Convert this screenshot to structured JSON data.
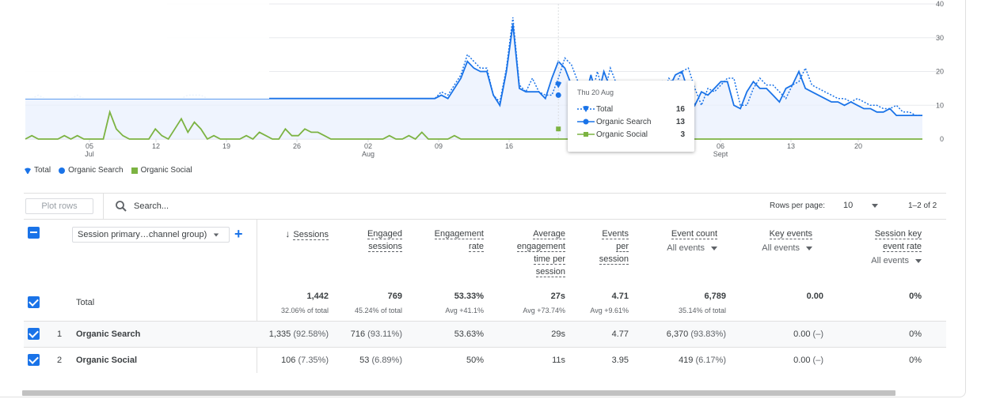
{
  "chart_data": {
    "type": "line",
    "x_tick_labels": [
      {
        "day": "05",
        "month": "Jul"
      },
      {
        "day": "12",
        "month": ""
      },
      {
        "day": "19",
        "month": ""
      },
      {
        "day": "26",
        "month": ""
      },
      {
        "day": "02",
        "month": "Aug"
      },
      {
        "day": "09",
        "month": ""
      },
      {
        "day": "16",
        "month": ""
      },
      {
        "day": "23",
        "month": ""
      },
      {
        "day": "30",
        "month": ""
      },
      {
        "day": "06",
        "month": "Sept"
      },
      {
        "day": "13",
        "month": ""
      },
      {
        "day": "20",
        "month": ""
      }
    ],
    "y_ticks": [
      "0",
      "10",
      "20",
      "30",
      "40"
    ],
    "ylim": [
      0,
      40
    ],
    "grid": true,
    "series": [
      {
        "name": "Total",
        "color": "#1a73e8",
        "style": "dotted",
        "values": [
          12,
          12,
          13,
          12,
          12,
          12,
          12,
          12,
          13,
          12,
          12,
          12,
          12,
          12,
          12,
          12,
          12,
          12,
          12,
          12,
          12,
          12,
          12,
          12,
          12,
          13,
          13,
          13,
          12,
          12,
          12,
          12,
          12,
          12,
          12,
          12,
          12,
          12,
          12,
          12,
          12,
          12,
          12,
          12,
          12,
          12,
          12,
          12,
          12,
          12,
          12,
          12,
          12,
          12,
          12,
          12,
          12,
          12,
          12,
          12,
          12,
          12,
          12,
          12,
          14,
          13,
          16,
          19,
          25,
          23,
          21,
          21,
          13,
          11,
          21,
          36,
          16,
          14,
          18,
          14,
          13,
          13,
          18,
          24,
          22,
          17,
          11,
          12,
          20,
          13,
          21,
          16,
          16,
          13,
          15,
          16,
          17,
          12,
          13,
          18,
          16,
          20,
          21,
          15,
          10,
          15,
          14,
          16,
          18,
          18,
          10,
          10,
          15,
          18,
          16,
          16,
          14,
          12,
          16,
          17,
          21,
          16,
          15,
          14,
          13,
          12,
          12,
          11,
          12,
          11,
          10,
          10,
          9,
          9,
          10,
          8,
          8,
          7,
          7
        ]
      },
      {
        "name": "Organic Search",
        "color": "#1a73e8",
        "style": "solid",
        "values": [
          12,
          12,
          12,
          12,
          12,
          12,
          12,
          12,
          12,
          12,
          12,
          12,
          12,
          12,
          12,
          12,
          12,
          12,
          12,
          12,
          12,
          12,
          12,
          12,
          12,
          12,
          12,
          12,
          12,
          12,
          12,
          12,
          12,
          12,
          12,
          12,
          12,
          12,
          12,
          12,
          12,
          12,
          12,
          12,
          12,
          12,
          12,
          12,
          12,
          12,
          12,
          12,
          12,
          12,
          12,
          12,
          12,
          12,
          12,
          12,
          12,
          12,
          12,
          12,
          13,
          12,
          15,
          18,
          23,
          21,
          20,
          20,
          13,
          10,
          20,
          34,
          15,
          14,
          14,
          14,
          12,
          18,
          23,
          21,
          16,
          10,
          11,
          19,
          12,
          20,
          15,
          15,
          12,
          14,
          15,
          16,
          11,
          12,
          17,
          15,
          19,
          20,
          14,
          10,
          14,
          13,
          15,
          17,
          17,
          10,
          9,
          14,
          17,
          15,
          15,
          13,
          11,
          15,
          16,
          20,
          15,
          14,
          13,
          12,
          11,
          11,
          10,
          11,
          10,
          9,
          9,
          8,
          8,
          9,
          7,
          7,
          7,
          7,
          7
        ]
      },
      {
        "name": "Organic Social",
        "color": "#7cb342",
        "style": "solid",
        "values": [
          0,
          1,
          0,
          0,
          0,
          0,
          1,
          0,
          1,
          0,
          0,
          0,
          0,
          8,
          3,
          1,
          0,
          0,
          0,
          0,
          3,
          1,
          0,
          3,
          6,
          2,
          5,
          3,
          0,
          1,
          0,
          0,
          0,
          0,
          1,
          0,
          2,
          1,
          0,
          0,
          3,
          1,
          1,
          3,
          2,
          2,
          1,
          0,
          0,
          0,
          0,
          0,
          0,
          0,
          0,
          0,
          1,
          0,
          0,
          1,
          0,
          2,
          0,
          0,
          0,
          0,
          1,
          0,
          0,
          0,
          0,
          0,
          0,
          0,
          0,
          0,
          0,
          0,
          0,
          0,
          0,
          0,
          0,
          0,
          0,
          0,
          0,
          0,
          0,
          0,
          0,
          0,
          0,
          0,
          0,
          0,
          0,
          0,
          0,
          0,
          0,
          0,
          0,
          0,
          0,
          0,
          0,
          0,
          0,
          0,
          0,
          0,
          0,
          0,
          0,
          0,
          0,
          0,
          0,
          0,
          0,
          0,
          0,
          0,
          0,
          0,
          0,
          0,
          0,
          0,
          0,
          0,
          0,
          0,
          0,
          0,
          0,
          0,
          0
        ]
      }
    ],
    "tooltip": {
      "date": "Thu 20 Aug",
      "rows": [
        {
          "label": "Total",
          "value": "16"
        },
        {
          "label": "Organic Search",
          "value": "13"
        },
        {
          "label": "Organic Social",
          "value": "3"
        }
      ]
    },
    "legend": [
      {
        "label": "Total",
        "marker": "droplet-icon",
        "color": "#1a73e8"
      },
      {
        "label": "Organic Search",
        "marker": "dot",
        "color": "#1a73e8"
      },
      {
        "label": "Organic Social",
        "marker": "square",
        "color": "#7cb342"
      }
    ]
  },
  "toolbar": {
    "plot_rows": "Plot rows",
    "search_placeholder": "Search...",
    "rows_per_page_label": "Rows per page:",
    "rows_per_page_value": "10",
    "page_info": "1–2 of 2"
  },
  "table": {
    "dimension_select": "Session primary…channel group)",
    "columns": [
      {
        "lines": [
          "Sessions"
        ],
        "sorted": true
      },
      {
        "lines": [
          "Engaged",
          "sessions"
        ]
      },
      {
        "lines": [
          "Engagement",
          "rate"
        ]
      },
      {
        "lines": [
          "Average",
          "engagement",
          "time per",
          "session"
        ]
      },
      {
        "lines": [
          "Events",
          "per",
          "session"
        ]
      },
      {
        "lines": [
          "Event count"
        ],
        "sub": "All events"
      },
      {
        "lines": [
          "Key events"
        ],
        "sub": "All events"
      },
      {
        "lines": [
          "Session key",
          "event rate"
        ],
        "sub": "All events"
      }
    ],
    "total": {
      "label": "Total",
      "values": [
        "1,442",
        "769",
        "53.33%",
        "27s",
        "4.71",
        "6,789",
        "0.00",
        "0%"
      ],
      "subs": [
        "32.06% of total",
        "45.24% of total",
        "Avg +41.1%",
        "Avg +73.74%",
        "Avg +9.61%",
        "35.14% of total",
        "",
        ""
      ]
    },
    "rows": [
      {
        "index": "1",
        "name": "Organic Search",
        "values": [
          {
            "v": "1,335",
            "p": "(92.58%)"
          },
          {
            "v": "716",
            "p": "(93.11%)"
          },
          {
            "v": "53.63%",
            "p": ""
          },
          {
            "v": "29s",
            "p": ""
          },
          {
            "v": "4.77",
            "p": ""
          },
          {
            "v": "6,370",
            "p": "(93.83%)"
          },
          {
            "v": "0.00",
            "p": "(–)"
          },
          {
            "v": "0%",
            "p": ""
          }
        ]
      },
      {
        "index": "2",
        "name": "Organic Social",
        "values": [
          {
            "v": "106",
            "p": "(7.35%)"
          },
          {
            "v": "53",
            "p": "(6.89%)"
          },
          {
            "v": "50%",
            "p": ""
          },
          {
            "v": "11s",
            "p": ""
          },
          {
            "v": "3.95",
            "p": ""
          },
          {
            "v": "419",
            "p": "(6.17%)"
          },
          {
            "v": "0.00",
            "p": "(–)"
          },
          {
            "v": "0%",
            "p": ""
          }
        ]
      }
    ]
  }
}
